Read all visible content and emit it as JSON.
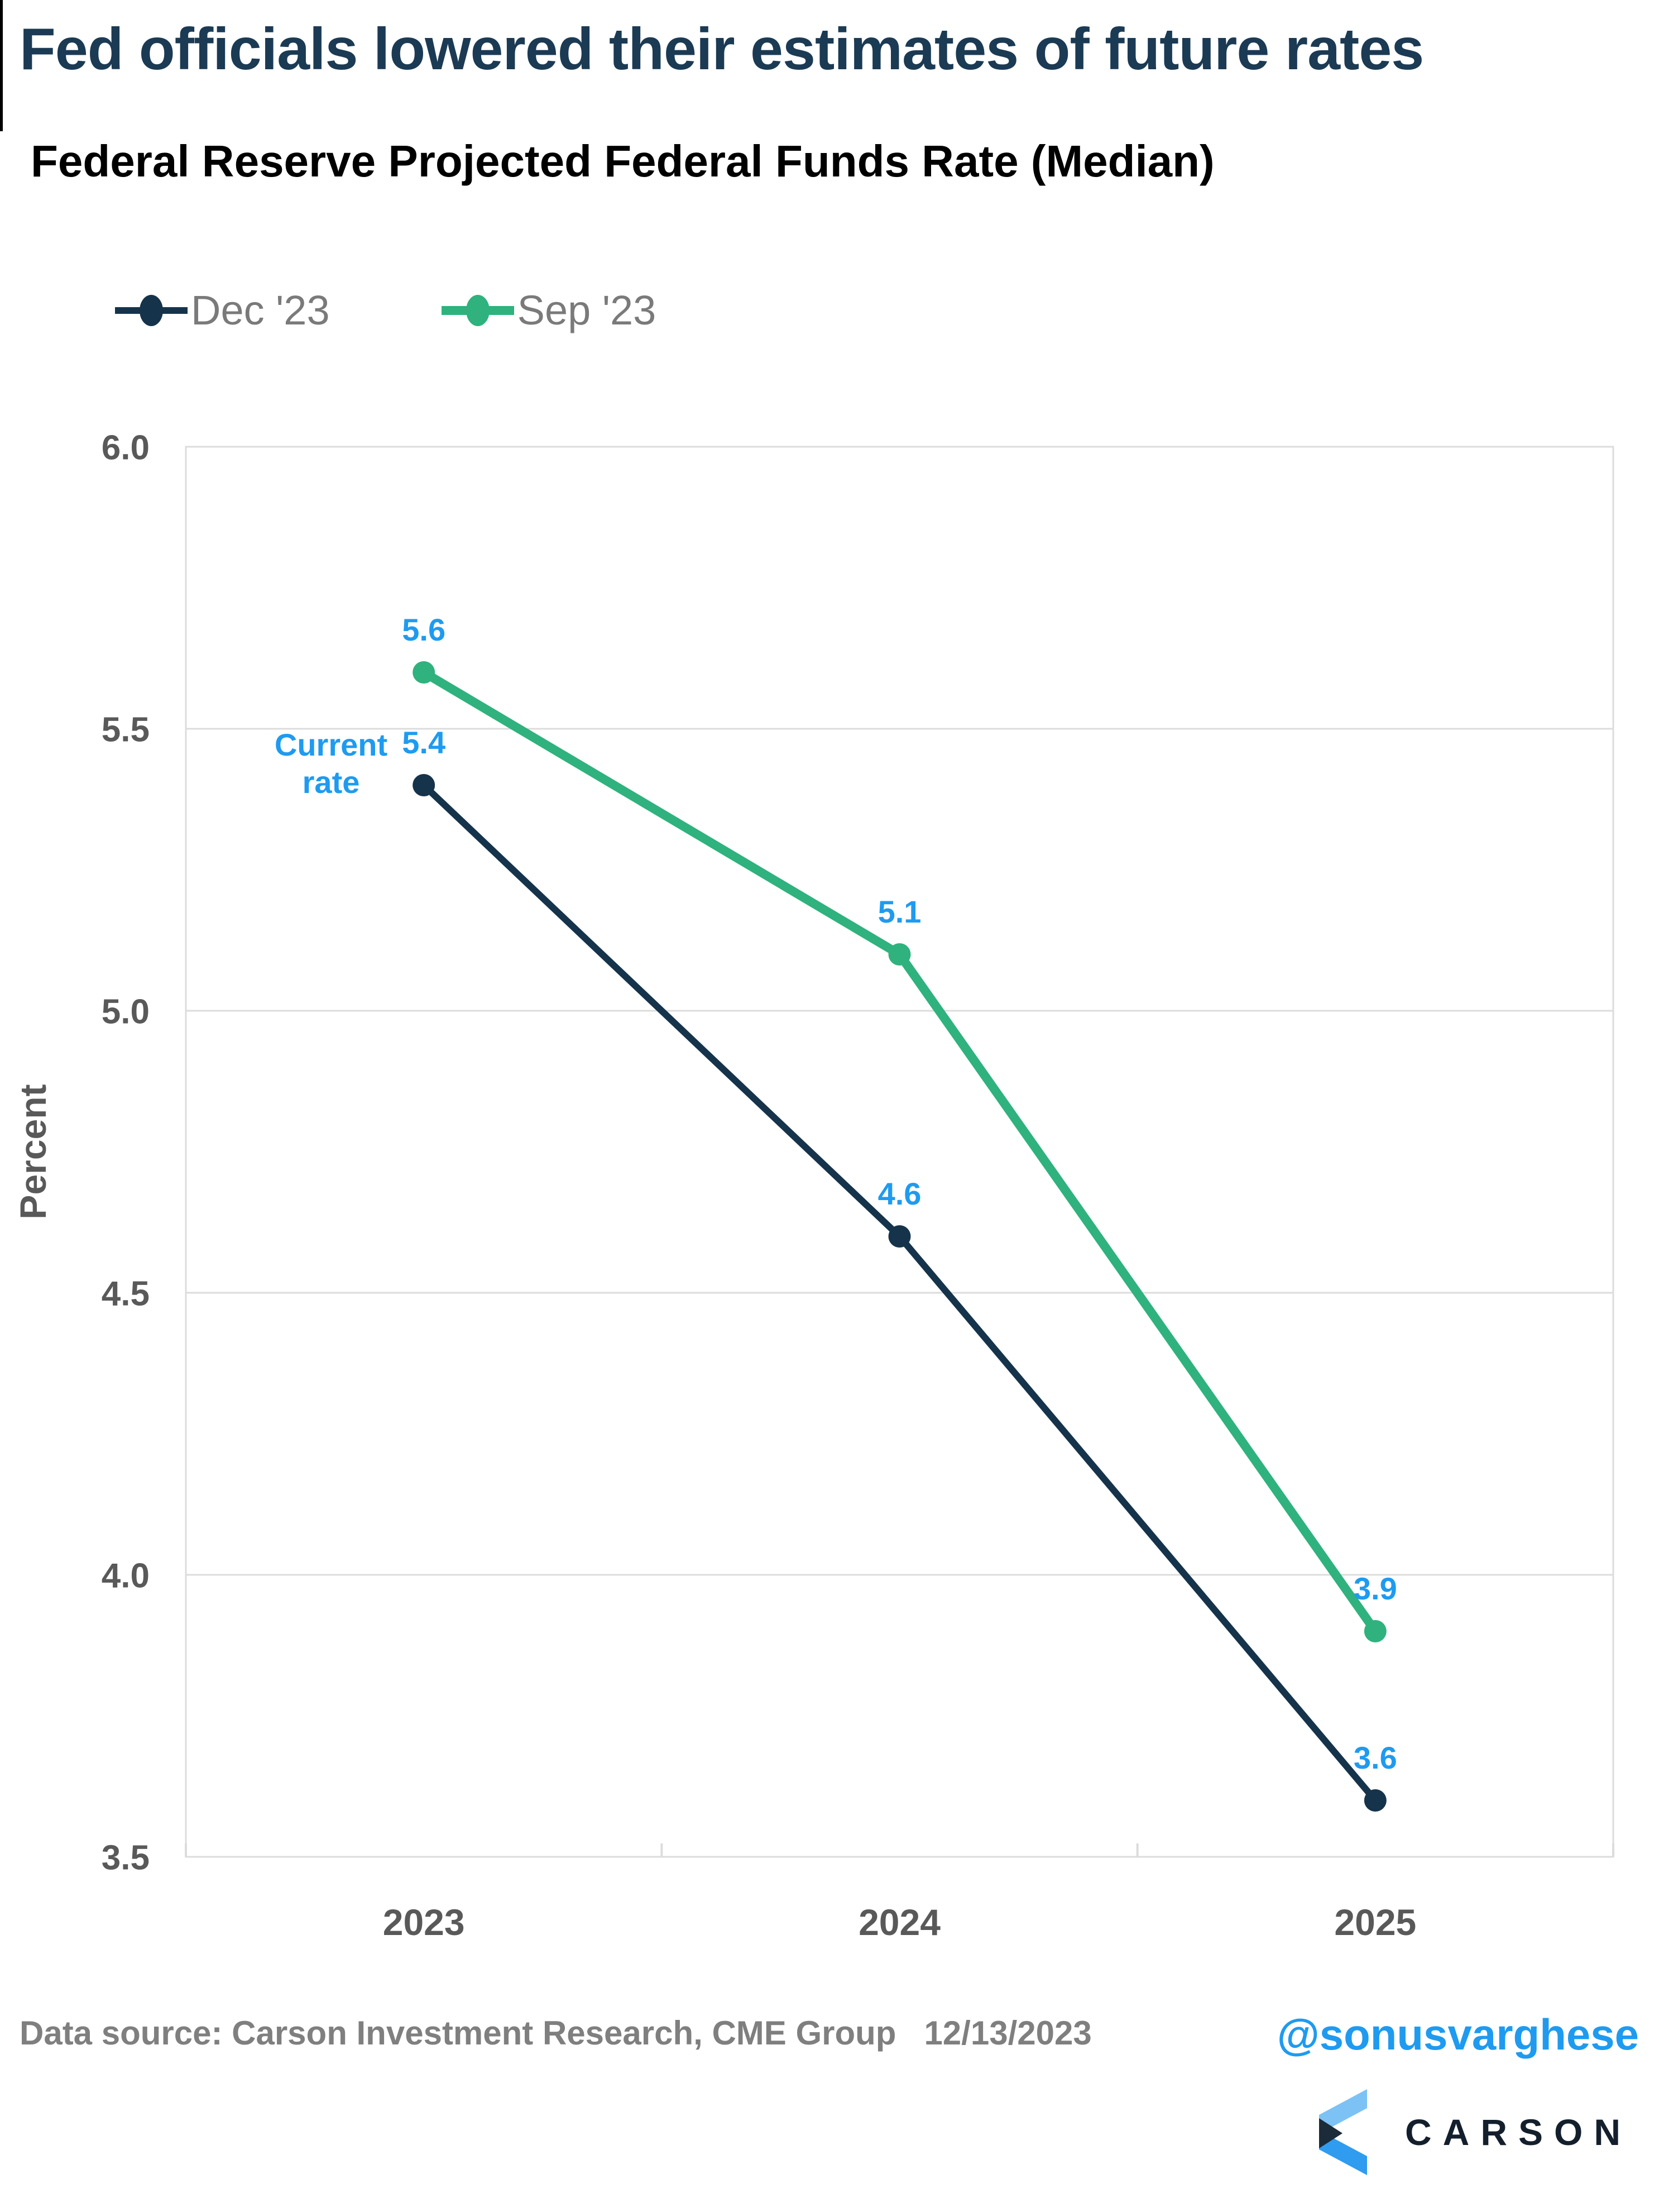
{
  "header": {
    "title": "Fed officials lowered their estimates of future rates"
  },
  "chart_data": {
    "type": "line",
    "title": "Federal Reserve Projected Federal Funds Rate (Median)",
    "categories": [
      "2023",
      "2024",
      "2025"
    ],
    "series": [
      {
        "name": "Dec '23",
        "values": [
          5.4,
          4.6,
          3.6
        ],
        "color": "#15334B",
        "line_width": 12
      },
      {
        "name": "Sep '23",
        "values": [
          5.6,
          5.1,
          3.9
        ],
        "color": "#2FB27E",
        "line_width": 16
      }
    ],
    "xlabel": "",
    "ylabel": "Percent",
    "ylim": [
      3.5,
      6.0
    ],
    "yticks": [
      6.0,
      5.5,
      5.0,
      4.5,
      4.0,
      3.5
    ],
    "grid": "horizontal",
    "legend_position": "top-left",
    "data_label_color": "#1E9BF0",
    "annotation": {
      "text": "Current rate",
      "target_series": "Dec '23",
      "target_category": "2023",
      "target_value": 5.4
    }
  },
  "footer": {
    "source_line": "Data source: Carson Investment Research, CME Group   12/13/2023",
    "handle": "@sonusvarghese",
    "logo_text": "CARSON"
  },
  "colors": {
    "title_text": "#1B3A54",
    "axis_text": "#595959",
    "legend_text": "#7A7A7A",
    "grid": "#DCDCDC",
    "data_label": "#1E9BF0",
    "footer_text": "#7F7F7F",
    "handle_text": "#1E9BF0",
    "logo_light": "#7CC2F5",
    "logo_mid": "#2F9CEF",
    "logo_dark": "#1C2B3A",
    "logo_wordmark": "#141F2D"
  }
}
